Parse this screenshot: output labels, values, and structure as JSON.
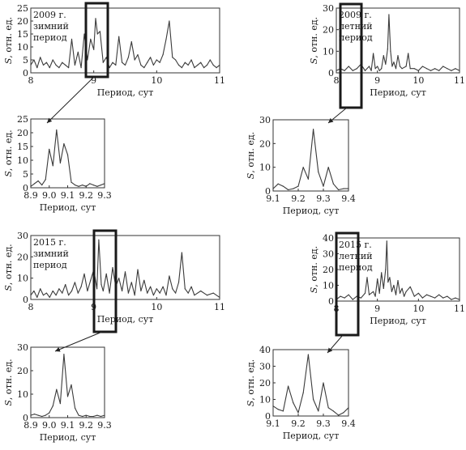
{
  "chart_data": [
    {
      "type": "line",
      "panel": "2009-winter-full",
      "annotation": [
        "2009 г.",
        "зимний",
        "период"
      ],
      "xlabel": "Период, сут",
      "ylabel": "S, отн. ед.",
      "xlim": [
        8,
        11
      ],
      "ylim": [
        0,
        25
      ],
      "xticks": [
        "8",
        "9",
        "10",
        "11"
      ],
      "yticks": [
        "0",
        "5",
        "10",
        "15",
        "20",
        "25"
      ],
      "series": [
        {
          "x": [
            8.0,
            8.05,
            8.1,
            8.15,
            8.2,
            8.25,
            8.3,
            8.35,
            8.4,
            8.45,
            8.5,
            8.55,
            8.6,
            8.65,
            8.7,
            8.75,
            8.8,
            8.85,
            8.9,
            8.95,
            9.0,
            9.03,
            9.06,
            9.1,
            9.15,
            9.2,
            9.25,
            9.3,
            9.35,
            9.4,
            9.45,
            9.5,
            9.55,
            9.6,
            9.65,
            9.7,
            9.75,
            9.8,
            9.85,
            9.9,
            9.95,
            10.0,
            10.05,
            10.1,
            10.15,
            10.2,
            10.25,
            10.3,
            10.35,
            10.4,
            10.45,
            10.5,
            10.55,
            10.6,
            10.65,
            10.7,
            10.75,
            10.8,
            10.85,
            10.9,
            10.95,
            11.0
          ],
          "y": [
            3,
            5,
            2,
            6,
            3,
            4,
            2,
            5,
            3,
            2,
            4,
            3,
            2,
            13,
            3,
            8,
            2,
            15,
            5,
            13,
            9,
            21,
            15,
            16,
            4,
            6,
            2,
            4,
            3,
            14,
            4,
            3,
            6,
            12,
            5,
            7,
            3,
            2,
            4,
            6,
            3,
            5,
            4,
            7,
            13,
            20,
            6,
            5,
            3,
            2,
            4,
            3,
            5,
            2,
            3,
            4,
            2,
            3,
            5,
            3,
            2,
            3
          ]
        }
      ]
    },
    {
      "type": "line",
      "panel": "2009-summer-full",
      "annotation": [
        "2009 г.",
        "летний",
        "период"
      ],
      "xlabel": "Период, сут",
      "ylabel": "S, отн. ед.",
      "xlim": [
        8,
        11
      ],
      "ylim": [
        0,
        30
      ],
      "xticks": [
        "8",
        "9",
        "10",
        "11"
      ],
      "yticks": [
        "0",
        "10",
        "20",
        "30"
      ],
      "series": [
        {
          "x": [
            8.0,
            8.1,
            8.2,
            8.3,
            8.4,
            8.5,
            8.6,
            8.7,
            8.8,
            8.85,
            8.9,
            8.95,
            9.0,
            9.05,
            9.1,
            9.15,
            9.2,
            9.25,
            9.28,
            9.32,
            9.36,
            9.4,
            9.45,
            9.5,
            9.55,
            9.6,
            9.7,
            9.75,
            9.8,
            9.9,
            10.0,
            10.1,
            10.2,
            10.3,
            10.4,
            10.5,
            10.6,
            10.7,
            10.8,
            10.9,
            11.0
          ],
          "y": [
            1,
            2,
            1,
            3,
            1,
            2,
            4,
            1,
            3,
            1,
            9,
            2,
            3,
            1,
            2,
            8,
            4,
            11,
            27,
            10,
            3,
            5,
            2,
            8,
            3,
            2,
            3,
            9,
            2,
            2,
            1,
            3,
            2,
            1,
            2,
            1,
            3,
            2,
            1,
            2,
            1
          ]
        }
      ]
    },
    {
      "type": "line",
      "panel": "2009-winter-zoom",
      "xlabel": "Период, сут",
      "ylabel": "S, отн. ед.",
      "xlim": [
        8.9,
        9.3
      ],
      "ylim": [
        0,
        25
      ],
      "xticks": [
        "8.9",
        "9.0",
        "9.1",
        "9.2",
        "9.3"
      ],
      "yticks": [
        "0",
        "5",
        "10",
        "15",
        "20",
        "25"
      ],
      "series": [
        {
          "x": [
            8.9,
            8.92,
            8.94,
            8.96,
            8.98,
            9.0,
            9.02,
            9.04,
            9.06,
            9.08,
            9.1,
            9.12,
            9.14,
            9.16,
            9.18,
            9.2,
            9.22,
            9.24,
            9.26,
            9.28,
            9.3
          ],
          "y": [
            0.5,
            1.5,
            2.5,
            1,
            3,
            14,
            8,
            21,
            9,
            16,
            12,
            2,
            1,
            0.5,
            1,
            0.5,
            1.5,
            1,
            0.5,
            1,
            1.5
          ]
        }
      ]
    },
    {
      "type": "line",
      "panel": "2009-summer-zoom",
      "xlabel": "Период, сут",
      "ylabel": "S, отн. ед.",
      "xlim": [
        9.1,
        9.4
      ],
      "ylim": [
        0,
        30
      ],
      "xticks": [
        "9.1",
        "9.2",
        "9.3",
        "9.4"
      ],
      "yticks": [
        "0",
        "10",
        "20",
        "30"
      ],
      "series": [
        {
          "x": [
            9.1,
            9.12,
            9.14,
            9.16,
            9.18,
            9.2,
            9.22,
            9.24,
            9.26,
            9.28,
            9.3,
            9.32,
            9.34,
            9.36,
            9.38,
            9.4
          ],
          "y": [
            1,
            3,
            2,
            0.5,
            1,
            2,
            10,
            5,
            26,
            8,
            2,
            10,
            3,
            0.5,
            1,
            1
          ]
        }
      ]
    },
    {
      "type": "line",
      "panel": "2015-winter-full",
      "annotation": [
        "2015 г.",
        "зимний",
        "период"
      ],
      "xlabel": "Период, сут",
      "ylabel": "S, отн. ед.",
      "xlim": [
        8,
        11
      ],
      "ylim": [
        0,
        30
      ],
      "xticks": [
        "8",
        "9",
        "10",
        "11"
      ],
      "yticks": [
        "0",
        "10",
        "20",
        "30"
      ],
      "series": [
        {
          "x": [
            8.0,
            8.05,
            8.1,
            8.15,
            8.2,
            8.25,
            8.3,
            8.35,
            8.4,
            8.45,
            8.5,
            8.55,
            8.6,
            8.65,
            8.7,
            8.75,
            8.8,
            8.85,
            8.9,
            8.95,
            9.0,
            9.05,
            9.08,
            9.12,
            9.15,
            9.2,
            9.25,
            9.3,
            9.35,
            9.4,
            9.45,
            9.5,
            9.55,
            9.6,
            9.65,
            9.7,
            9.75,
            9.8,
            9.85,
            9.9,
            9.95,
            10.0,
            10.05,
            10.1,
            10.15,
            10.2,
            10.25,
            10.3,
            10.35,
            10.4,
            10.45,
            10.5,
            10.55,
            10.6,
            10.7,
            10.8,
            10.9,
            11.0
          ],
          "y": [
            2,
            4,
            1,
            5,
            2,
            3,
            1,
            4,
            2,
            5,
            3,
            7,
            2,
            4,
            8,
            3,
            6,
            12,
            4,
            9,
            14,
            5,
            28,
            7,
            4,
            12,
            3,
            15,
            6,
            10,
            4,
            13,
            3,
            8,
            2,
            14,
            4,
            9,
            3,
            6,
            2,
            5,
            3,
            6,
            2,
            11,
            5,
            3,
            8,
            22,
            5,
            3,
            6,
            2,
            4,
            2,
            3,
            1
          ]
        }
      ]
    },
    {
      "type": "line",
      "panel": "2015-summer-full",
      "annotation": [
        "2015 г.",
        "летний",
        "период"
      ],
      "xlabel": "Период, сут",
      "ylabel": "S, отн. ед.",
      "xlim": [
        8,
        11
      ],
      "ylim": [
        0,
        40
      ],
      "xticks": [
        "8",
        "9",
        "10",
        "11"
      ],
      "yticks": [
        "0",
        "10",
        "20",
        "30",
        "40"
      ],
      "series": [
        {
          "x": [
            8.0,
            8.1,
            8.2,
            8.3,
            8.4,
            8.5,
            8.6,
            8.7,
            8.75,
            8.8,
            8.9,
            8.95,
            9.0,
            9.05,
            9.1,
            9.15,
            9.2,
            9.23,
            9.26,
            9.3,
            9.35,
            9.4,
            9.45,
            9.5,
            9.55,
            9.6,
            9.65,
            9.7,
            9.8,
            9.9,
            10.0,
            10.1,
            10.2,
            10.3,
            10.4,
            10.5,
            10.6,
            10.7,
            10.8,
            10.9,
            11.0
          ],
          "y": [
            1,
            3,
            2,
            4,
            1,
            3,
            2,
            5,
            15,
            4,
            6,
            3,
            14,
            5,
            18,
            8,
            20,
            38,
            12,
            15,
            6,
            10,
            4,
            13,
            5,
            8,
            3,
            6,
            9,
            3,
            5,
            2,
            4,
            3,
            2,
            4,
            2,
            3,
            1,
            2,
            1
          ]
        }
      ]
    },
    {
      "type": "line",
      "panel": "2015-winter-zoom",
      "xlabel": "Период, сут",
      "ylabel": "S, отн. ед.",
      "xlim": [
        8.9,
        9.3
      ],
      "ylim": [
        0,
        30
      ],
      "xticks": [
        "8.9",
        "9.0",
        "9.1",
        "9.2",
        "9.3"
      ],
      "yticks": [
        "0",
        "10",
        "20",
        "30"
      ],
      "series": [
        {
          "x": [
            8.9,
            8.92,
            8.94,
            8.96,
            8.98,
            9.0,
            9.02,
            9.04,
            9.06,
            9.08,
            9.1,
            9.12,
            9.14,
            9.16,
            9.18,
            9.2,
            9.22,
            9.24,
            9.26,
            9.28,
            9.3
          ],
          "y": [
            1,
            1.5,
            1,
            0.5,
            1,
            2,
            5,
            12,
            6,
            27,
            9,
            14,
            4,
            1,
            0.5,
            1,
            0.5,
            0.5,
            1,
            0.5,
            1
          ]
        }
      ]
    },
    {
      "type": "line",
      "panel": "2015-summer-zoom",
      "xlabel": "Период, сут",
      "ylabel": "S, отн. ед.",
      "xlim": [
        9.1,
        9.4
      ],
      "ylim": [
        0,
        40
      ],
      "xticks": [
        "9.1",
        "9.2",
        "9.3",
        "9.4"
      ],
      "yticks": [
        "0",
        "10",
        "20",
        "30",
        "40"
      ],
      "series": [
        {
          "x": [
            9.1,
            9.12,
            9.14,
            9.16,
            9.18,
            9.2,
            9.22,
            9.24,
            9.26,
            9.28,
            9.3,
            9.32,
            9.34,
            9.36,
            9.38,
            9.4
          ],
          "y": [
            6,
            4,
            3,
            18,
            8,
            2,
            14,
            37,
            10,
            3,
            20,
            5,
            3,
            0.5,
            2,
            5
          ]
        }
      ]
    }
  ]
}
